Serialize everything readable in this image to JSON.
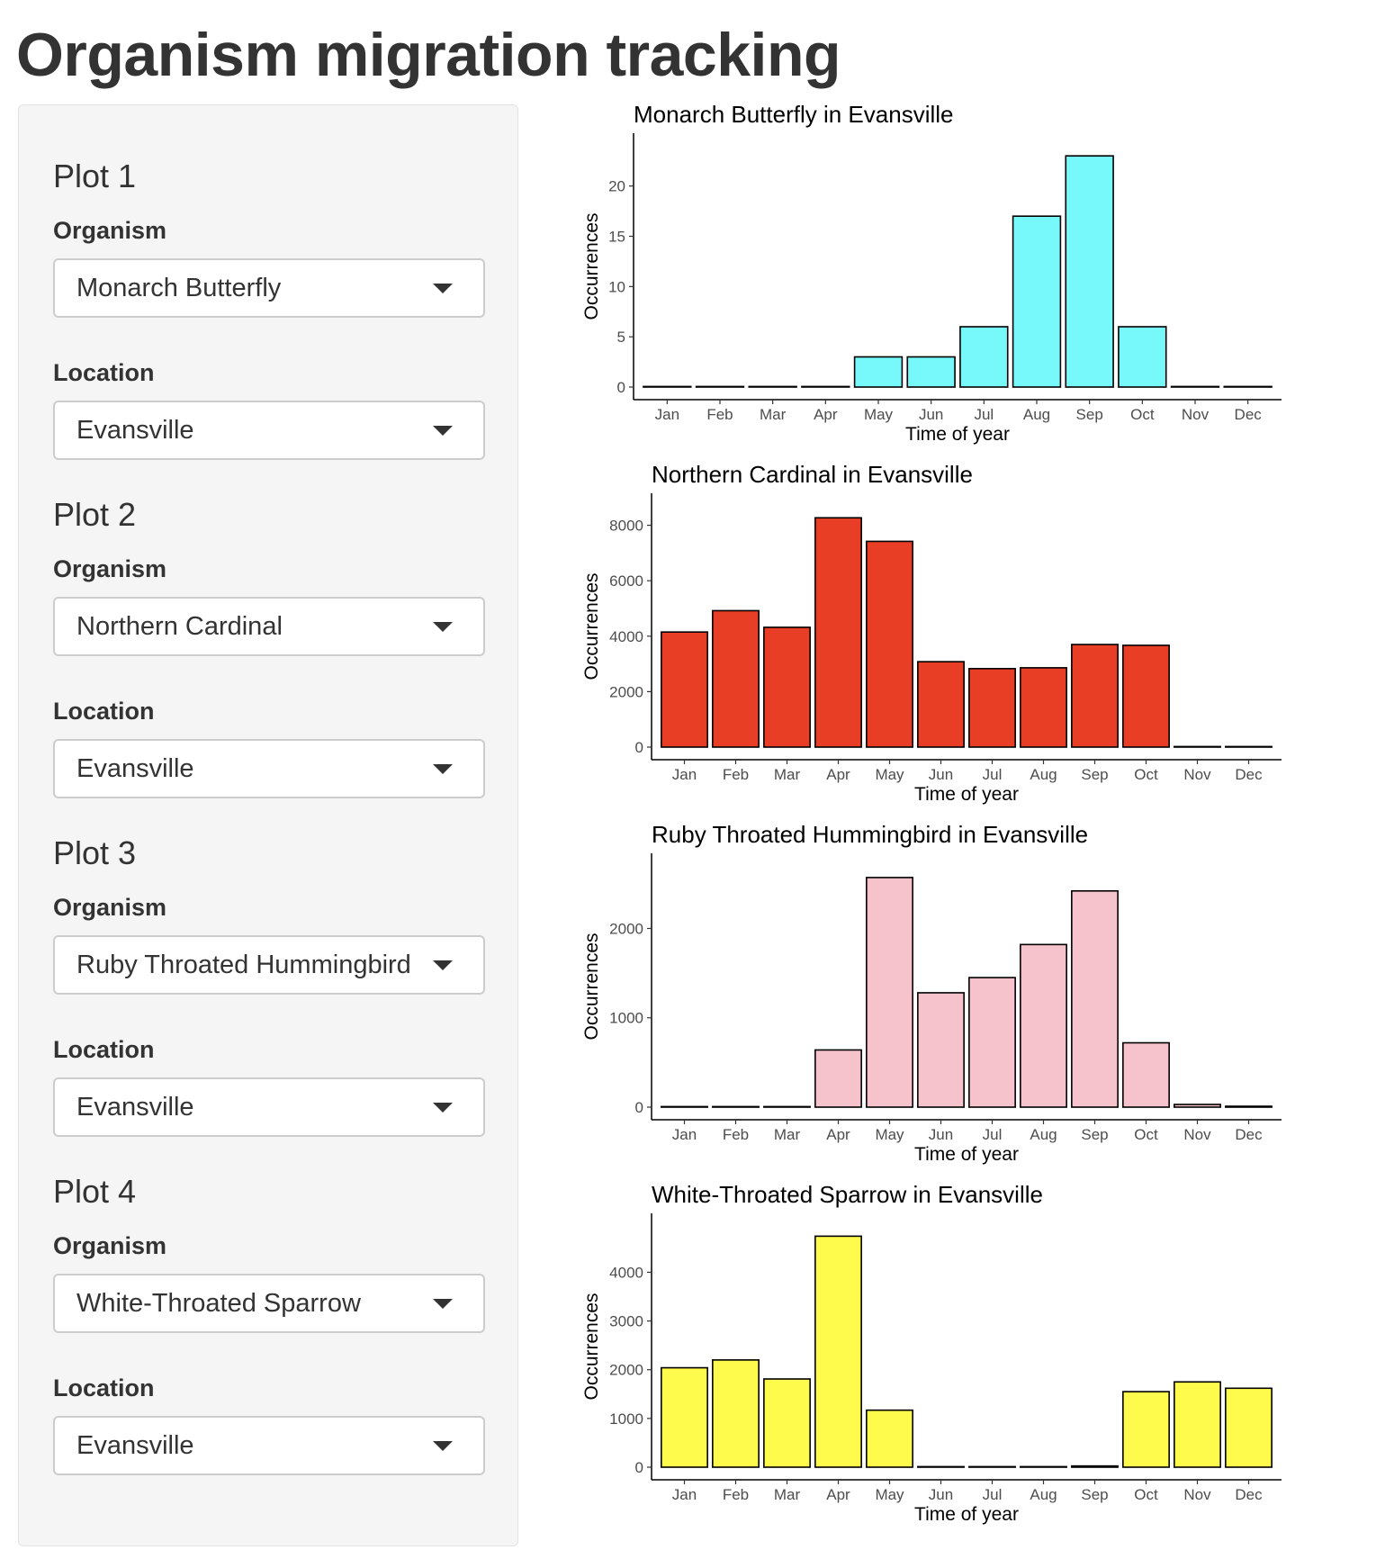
{
  "page": {
    "title": "Organism migration tracking"
  },
  "sidebar": {
    "plots": [
      {
        "heading": "Plot 1",
        "organism_label": "Organism",
        "organism_value": "Monarch Butterfly",
        "location_label": "Location",
        "location_value": "Evansville"
      },
      {
        "heading": "Plot 2",
        "organism_label": "Organism",
        "organism_value": "Northern Cardinal",
        "location_label": "Location",
        "location_value": "Evansville"
      },
      {
        "heading": "Plot 3",
        "organism_label": "Organism",
        "organism_value": "Ruby Throated Hummingbird",
        "location_label": "Location",
        "location_value": "Evansville"
      },
      {
        "heading": "Plot 4",
        "organism_label": "Organism",
        "organism_value": "White-Throated Sparrow",
        "location_label": "Location",
        "location_value": "Evansville"
      }
    ]
  },
  "chart_data": [
    {
      "type": "bar",
      "title": "Monarch Butterfly in Evansville",
      "xlabel": "Time of year",
      "ylabel": "Occurrences",
      "categories": [
        "Jan",
        "Feb",
        "Mar",
        "Apr",
        "May",
        "Jun",
        "Jul",
        "Aug",
        "Sep",
        "Oct",
        "Nov",
        "Dec"
      ],
      "values": [
        0,
        0,
        0,
        0,
        3,
        3,
        6,
        17,
        23,
        6,
        0,
        0
      ],
      "yticks": [
        0,
        5,
        10,
        15,
        20
      ],
      "ylim": [
        0,
        24
      ],
      "color": "#77f9fb"
    },
    {
      "type": "bar",
      "title": "Northern Cardinal in Evansville",
      "xlabel": "Time of year",
      "ylabel": "Occurrences",
      "categories": [
        "Jan",
        "Feb",
        "Mar",
        "Apr",
        "May",
        "Jun",
        "Jul",
        "Aug",
        "Sep",
        "Oct",
        "Nov",
        "Dec"
      ],
      "values": [
        4150,
        4920,
        4320,
        8270,
        7420,
        3080,
        2830,
        2860,
        3700,
        3670,
        0,
        0
      ],
      "yticks": [
        0,
        2000,
        4000,
        6000,
        8000
      ],
      "ylim": [
        0,
        8700
      ],
      "color": "#e93e26"
    },
    {
      "type": "bar",
      "title": "Ruby Throated Hummingbird in Evansville",
      "xlabel": "Time of year",
      "ylabel": "Occurrences",
      "categories": [
        "Jan",
        "Feb",
        "Mar",
        "Apr",
        "May",
        "Jun",
        "Jul",
        "Aug",
        "Sep",
        "Oct",
        "Nov",
        "Dec"
      ],
      "values": [
        0,
        0,
        4,
        640,
        2570,
        1280,
        1450,
        1820,
        2420,
        720,
        30,
        10
      ],
      "yticks": [
        0,
        1000,
        2000
      ],
      "ylim": [
        0,
        2700
      ],
      "color": "#f6c2cc"
    },
    {
      "type": "bar",
      "title": "White-Throated Sparrow in Evansville",
      "xlabel": "Time of year",
      "ylabel": "Occurrences",
      "categories": [
        "Jan",
        "Feb",
        "Mar",
        "Apr",
        "May",
        "Jun",
        "Jul",
        "Aug",
        "Sep",
        "Oct",
        "Nov",
        "Dec"
      ],
      "values": [
        2040,
        2200,
        1810,
        4740,
        1170,
        10,
        5,
        5,
        25,
        1550,
        1750,
        1620
      ],
      "yticks": [
        0,
        1000,
        2000,
        3000,
        4000
      ],
      "ylim": [
        0,
        4950
      ],
      "color": "#fffb4c"
    }
  ]
}
